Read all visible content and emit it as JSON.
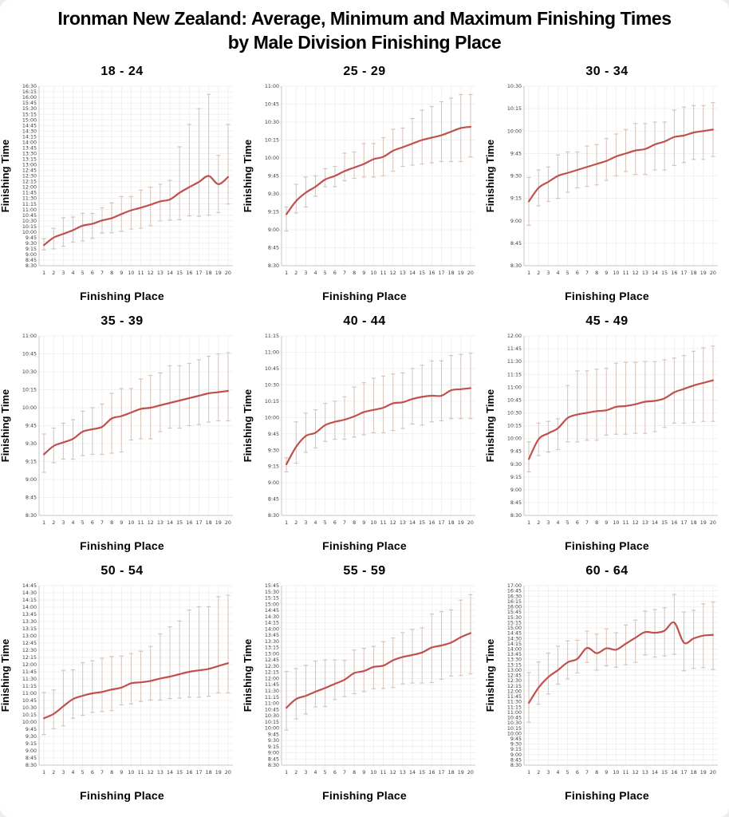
{
  "page": {
    "title_line1": "Ironman New Zealand: Average, Minimum and Maximum Finishing Times",
    "title_line2": "by Male Division Finishing Place"
  },
  "colors": {
    "average_line": "#c0504d",
    "error_bar": "#d8c3ba",
    "grid": "#ececea",
    "axis": "#c9c6c2",
    "tick_text": "#3a3a3a",
    "title_text": "#000000"
  },
  "chart_common": {
    "xlabel": "Finishing Place",
    "ylabel": "Finishing Time",
    "places": [
      1,
      2,
      3,
      4,
      5,
      6,
      7,
      8,
      9,
      10,
      11,
      12,
      13,
      14,
      15,
      16,
      17,
      18,
      19,
      20
    ],
    "ytick_interval_min": 15,
    "grid": "on",
    "legend": "none",
    "series_names": [
      "Minimum",
      "Average",
      "Maximum"
    ]
  },
  "chart_data": [
    {
      "type": "line",
      "title": "18 - 24",
      "ylim": [
        "8:30",
        "16:30"
      ],
      "series": [
        {
          "name": "Minimum",
          "values": [
            "9:12",
            "9:15",
            "9:22",
            "9:33",
            "9:36",
            "9:43",
            "9:57",
            "9:58",
            "10:02",
            "10:08",
            "10:10",
            "10:17",
            "10:30",
            "10:32",
            "10:33",
            "10:43",
            "10:42",
            "10:45",
            "10:52",
            "11:15"
          ]
        },
        {
          "name": "Average",
          "values": [
            "9:25",
            "9:45",
            "9:55",
            "10:05",
            "10:17",
            "10:22",
            "10:31",
            "10:37",
            "10:48",
            "10:58",
            "11:05",
            "11:13",
            "11:22",
            "11:27",
            "11:45",
            "12:00",
            "12:14",
            "12:30",
            "12:08",
            "12:27"
          ]
        },
        {
          "name": "Maximum",
          "values": [
            "9:42",
            "10:10",
            "10:38",
            "10:40",
            "10:50",
            "10:50",
            "11:05",
            "11:18",
            "11:35",
            "11:35",
            "11:52",
            "12:00",
            "12:08",
            "12:18",
            "13:48",
            "14:48",
            "15:30",
            "16:08",
            "13:25",
            "14:48"
          ]
        }
      ]
    },
    {
      "type": "line",
      "title": "25 - 29",
      "ylim": [
        "8:30",
        "11:00"
      ],
      "series": [
        {
          "name": "Minimum",
          "values": [
            "8:59",
            "9:14",
            "9:19",
            "9:28",
            "9:36",
            "9:36",
            "9:41",
            "9:43",
            "9:44",
            "9:44",
            "9:45",
            "9:49",
            "9:53",
            "9:54",
            "9:55",
            "9:56",
            "9:57",
            "9:57",
            "9:57",
            "10:01"
          ]
        },
        {
          "name": "Average",
          "values": [
            "9:13",
            "9:24",
            "9:31",
            "9:36",
            "9:42",
            "9:45",
            "9:49",
            "9:52",
            "9:55",
            "9:59",
            "10:01",
            "10:06",
            "10:09",
            "10:12",
            "10:15",
            "10:17",
            "10:19",
            "10:22",
            "10:25",
            "10:26"
          ]
        },
        {
          "name": "Maximum",
          "values": [
            "9:19",
            "9:38",
            "9:44",
            "9:45",
            "9:51",
            "9:53",
            "10:04",
            "10:05",
            "10:12",
            "10:12",
            "10:17",
            "10:24",
            "10:25",
            "10:33",
            "10:40",
            "10:43",
            "10:47",
            "10:50",
            "10:53",
            "10:53"
          ]
        }
      ]
    },
    {
      "type": "line",
      "title": "30 - 34",
      "ylim": [
        "8:30",
        "10:30"
      ],
      "series": [
        {
          "name": "Minimum",
          "values": [
            "8:57",
            "9:10",
            "9:13",
            "9:15",
            "9:19",
            "9:22",
            "9:23",
            "9:24",
            "9:27",
            "9:30",
            "9:33",
            "9:31",
            "9:31",
            "9:34",
            "9:34",
            "9:37",
            "9:39",
            "9:41",
            "9:41",
            "9:43"
          ]
        },
        {
          "name": "Average",
          "values": [
            "9:13",
            "9:22",
            "9:26",
            "9:30",
            "9:32",
            "9:34",
            "9:36",
            "9:38",
            "9:40",
            "9:43",
            "9:45",
            "9:47",
            "9:48",
            "9:51",
            "9:53",
            "9:56",
            "9:57",
            "9:59",
            "10:00",
            "10:01"
          ]
        },
        {
          "name": "Maximum",
          "values": [
            "9:29",
            "9:34",
            "9:36",
            "9:44",
            "9:46",
            "9:46",
            "9:50",
            "9:51",
            "9:55",
            "9:58",
            "10:01",
            "10:05",
            "10:05",
            "10:06",
            "10:06",
            "10:14",
            "10:16",
            "10:17",
            "10:17",
            "10:19"
          ]
        }
      ]
    },
    {
      "type": "line",
      "title": "35 - 39",
      "ylim": [
        "8:30",
        "11:00"
      ],
      "series": [
        {
          "name": "Minimum",
          "values": [
            "9:06",
            "9:14",
            "9:17",
            "9:17",
            "9:20",
            "9:21",
            "9:21",
            "9:22",
            "9:23",
            "9:33",
            "9:34",
            "9:34",
            "9:40",
            "9:43",
            "9:43",
            "9:45",
            "9:46",
            "9:48",
            "9:49",
            "9:49"
          ]
        },
        {
          "name": "Average",
          "values": [
            "9:21",
            "9:28",
            "9:31",
            "9:34",
            "9:40",
            "9:42",
            "9:44",
            "9:51",
            "9:53",
            "9:56",
            "9:59",
            "10:00",
            "10:02",
            "10:04",
            "10:06",
            "10:08",
            "10:10",
            "10:12",
            "10:13",
            "10:14"
          ]
        },
        {
          "name": "Maximum",
          "values": [
            "9:38",
            "9:43",
            "9:47",
            "9:50",
            "9:57",
            "10:00",
            "10:03",
            "10:12",
            "10:16",
            "10:16",
            "10:24",
            "10:27",
            "10:29",
            "10:35",
            "10:35",
            "10:37",
            "10:40",
            "10:43",
            "10:45",
            "10:46"
          ]
        }
      ]
    },
    {
      "type": "line",
      "title": "40 - 44",
      "ylim": [
        "8:30",
        "11:15"
      ],
      "series": [
        {
          "name": "Minimum",
          "values": [
            "9:10",
            "9:18",
            "9:28",
            "9:32",
            "9:38",
            "9:40",
            "9:40",
            "9:42",
            "9:44",
            "9:46",
            "9:46",
            "9:48",
            "9:50",
            "9:54",
            "9:53",
            "9:56",
            "9:57",
            "9:59",
            "9:59",
            "9:59"
          ]
        },
        {
          "name": "Average",
          "values": [
            "9:17",
            "9:33",
            "9:43",
            "9:46",
            "9:53",
            "9:56",
            "9:58",
            "10:01",
            "10:05",
            "10:07",
            "10:09",
            "10:13",
            "10:14",
            "10:17",
            "10:19",
            "10:20",
            "10:20",
            "10:25",
            "10:26",
            "10:27"
          ]
        },
        {
          "name": "Maximum",
          "values": [
            "9:23",
            "9:56",
            "10:04",
            "10:07",
            "10:13",
            "10:15",
            "10:19",
            "10:28",
            "10:32",
            "10:36",
            "10:38",
            "10:40",
            "10:41",
            "10:45",
            "10:48",
            "10:52",
            "10:52",
            "10:57",
            "10:58",
            "10:59"
          ]
        }
      ]
    },
    {
      "type": "line",
      "title": "45 - 49",
      "ylim": [
        "8:30",
        "12:00"
      ],
      "series": [
        {
          "name": "Minimum",
          "values": [
            "9:21",
            "9:40",
            "9:44",
            "9:47",
            "9:56",
            "9:56",
            "9:58",
            "9:58",
            "10:04",
            "10:05",
            "10:05",
            "10:06",
            "10:06",
            "10:08",
            "10:13",
            "10:18",
            "10:18",
            "10:19",
            "10:20",
            "10:20"
          ]
        },
        {
          "name": "Average",
          "values": [
            "9:36",
            "9:59",
            "10:06",
            "10:12",
            "10:24",
            "10:28",
            "10:30",
            "10:32",
            "10:33",
            "10:37",
            "10:38",
            "10:40",
            "10:43",
            "10:44",
            "10:47",
            "10:54",
            "10:58",
            "11:02",
            "11:05",
            "11:08"
          ]
        },
        {
          "name": "Maximum",
          "values": [
            "9:56",
            "10:18",
            "10:20",
            "10:23",
            "11:02",
            "11:19",
            "11:19",
            "11:21",
            "11:22",
            "11:28",
            "11:29",
            "11:29",
            "11:30",
            "11:30",
            "11:32",
            "11:34",
            "11:37",
            "11:42",
            "11:46",
            "11:48"
          ]
        }
      ]
    },
    {
      "type": "line",
      "title": "50 - 54",
      "ylim": [
        "8:30",
        "14:45"
      ],
      "series": [
        {
          "name": "Minimum",
          "values": [
            "9:34",
            "9:46",
            "9:52",
            "10:08",
            "10:14",
            "10:20",
            "10:22",
            "10:24",
            "10:36",
            "10:38",
            "10:43",
            "10:46",
            "10:46",
            "10:49",
            "10:50",
            "10:52",
            "10:52",
            "10:54",
            "11:01",
            "11:01"
          ]
        },
        {
          "name": "Average",
          "values": [
            "10:08",
            "10:17",
            "10:33",
            "10:48",
            "10:55",
            "11:00",
            "11:03",
            "11:08",
            "11:12",
            "11:21",
            "11:23",
            "11:26",
            "11:31",
            "11:35",
            "11:40",
            "11:45",
            "11:48",
            "11:51",
            "11:57",
            "12:03"
          ]
        },
        {
          "name": "Maximum",
          "values": [
            "11:02",
            "11:07",
            "11:48",
            "11:49",
            "12:04",
            "12:08",
            "12:13",
            "12:17",
            "12:18",
            "12:23",
            "12:28",
            "12:38",
            "13:04",
            "13:19",
            "13:31",
            "13:54",
            "14:01",
            "14:01",
            "14:22",
            "14:25"
          ]
        }
      ]
    },
    {
      "type": "line",
      "title": "55 - 59",
      "ylim": [
        "8:30",
        "15:45"
      ],
      "series": [
        {
          "name": "Minimum",
          "values": [
            "9:55",
            "10:22",
            "10:34",
            "10:51",
            "10:52",
            "11:09",
            "11:16",
            "11:23",
            "11:28",
            "11:35",
            "11:36",
            "11:38",
            "11:47",
            "11:49",
            "11:49",
            "11:50",
            "11:58",
            "12:06",
            "12:07",
            "12:11"
          ]
        },
        {
          "name": "Average",
          "values": [
            "10:49",
            "11:10",
            "11:18",
            "11:28",
            "11:37",
            "11:47",
            "11:57",
            "12:13",
            "12:18",
            "12:28",
            "12:31",
            "12:44",
            "12:52",
            "12:57",
            "13:03",
            "13:15",
            "13:20",
            "13:27",
            "13:40",
            "13:50"
          ]
        },
        {
          "name": "Maximum",
          "values": [
            "12:17",
            "12:24",
            "12:32",
            "12:42",
            "12:45",
            "12:45",
            "12:44",
            "13:09",
            "13:13",
            "13:18",
            "13:29",
            "13:38",
            "13:51",
            "13:59",
            "14:03",
            "14:36",
            "14:42",
            "14:46",
            "15:10",
            "15:23"
          ]
        }
      ]
    },
    {
      "type": "line",
      "title": "60 - 64",
      "ylim": [
        "8:30",
        "17:00"
      ],
      "series": [
        {
          "name": "Minimum",
          "values": [
            "10:32",
            "11:23",
            "11:52",
            "12:20",
            "12:35",
            "12:52",
            "13:22",
            "13:00",
            "13:12",
            "13:08",
            "13:15",
            "13:22",
            "13:43",
            "13:37",
            "13:40",
            "13:45",
            "12:58",
            "13:05",
            "13:07",
            "13:02"
          ]
        },
        {
          "name": "Average",
          "values": [
            "11:27",
            "12:10",
            "12:40",
            "13:00",
            "13:22",
            "13:32",
            "14:03",
            "13:48",
            "14:02",
            "13:58",
            "14:15",
            "14:32",
            "14:48",
            "14:46",
            "14:52",
            "15:15",
            "14:18",
            "14:30",
            "14:38",
            "14:40"
          ]
        },
        {
          "name": "Maximum",
          "values": [
            "12:53",
            "13:23",
            "13:48",
            "14:08",
            "14:23",
            "14:25",
            "14:51",
            "14:42",
            "14:57",
            "14:46",
            "15:08",
            "15:22",
            "15:48",
            "15:52",
            "15:57",
            "16:35",
            "15:45",
            "15:50",
            "16:08",
            "16:13"
          ]
        }
      ]
    }
  ]
}
